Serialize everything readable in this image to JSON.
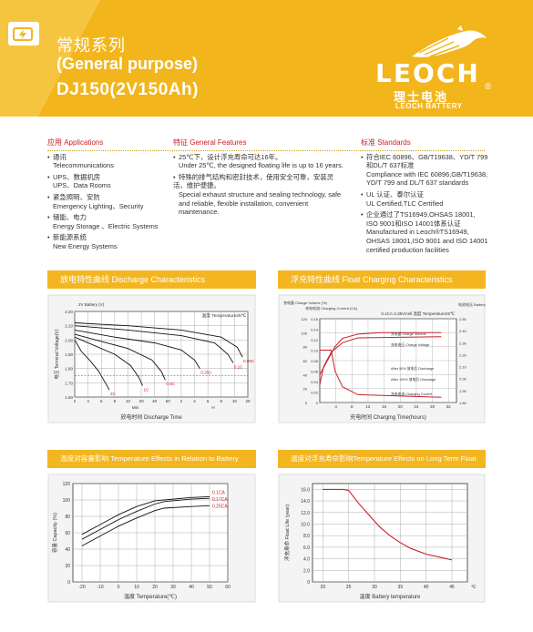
{
  "header": {
    "title_cn": "常规系列",
    "title_en": "(General purpose)",
    "model": "DJ150(2V150Ah)",
    "logo_word": "LEOCH",
    "logo_cn": "理士电池",
    "logo_sub": "LEOCH BATTERY",
    "logo_reg": "®",
    "brand_color": "#f2b51c",
    "accent_color": "#c8202a"
  },
  "applications": {
    "heading": "应用 Applications",
    "items": [
      {
        "cn": "通讯",
        "en": "Telecommunications"
      },
      {
        "cn": "UPS、数据机房",
        "en": "UPS、Data Rooms"
      },
      {
        "cn": "紧急照明、安防",
        "en": "Emergency Lighting、Security"
      },
      {
        "cn": "储能、电力",
        "en": "Energy Storage 、Electric Systems"
      },
      {
        "cn": "新能源系统",
        "en": "New Energy Systems"
      }
    ]
  },
  "features": {
    "heading": "特征 General Features",
    "items": [
      {
        "cn": "25℃下，设计浮充寿命可达16年。",
        "en": "Under 25℃, the designed floating life is up to 16 years."
      },
      {
        "cn": "特殊的排气结构和密封技术，使用安全可靠，安装灵活，维护便捷。",
        "en": "Special exhaust structure and sealing technology, safe and reliable, flexible installation, convenient maintenance."
      }
    ]
  },
  "standards": {
    "heading": "标准 Standards",
    "items": [
      {
        "lines": [
          "符合IEC 60896、GB/T19638、YD/T 799",
          "和DL/T 637标准",
          "Compliance with IEC 60896,GB/T19638,",
          "YD/T 799 and DL/T 637 standards"
        ]
      },
      {
        "lines": [
          "UL 认证、泰尔认证",
          "UL Certified,TLC Certified"
        ]
      },
      {
        "lines": [
          "企业通过了TS16949,OHSAS 18001,",
          "ISO 9001和ISO 14001体系认证",
          "Manufactured in Leoch®TS16949,",
          "OHSAS 18001,ISO 9001 and ISO 14001",
          "certified production facilities"
        ]
      }
    ]
  },
  "panels": {
    "discharge": "放电特性曲线 Discharge Characteristics",
    "float": "浮充特性曲线 Float Charging Characteristics",
    "temperature": "温度对容量影响 Temperature Effects in Relation to Battery Capacity",
    "life": "温度对浮充寿命影响Temperature Effects on Long Term Float Life"
  },
  "chart_data": [
    {
      "type": "line",
      "title": "温度 Temperature25℃",
      "xlabel": "放电时间 Discharge Time",
      "ylabel": "电压 Terminal Voltage(V)",
      "y_unit_label": "2V Battery (V)",
      "ylim": [
        1.6,
        2.2
      ],
      "yticks": [
        "2.20",
        "2.10",
        "2.00",
        "1.90",
        "1.80",
        "1.70",
        "1.60"
      ],
      "xticks": [
        "2",
        "4",
        "6",
        "8",
        "10",
        "20",
        "40",
        "60",
        "2",
        "4",
        "6",
        "8",
        "10",
        "20"
      ],
      "x_unit_labels": [
        "Min",
        "H"
      ],
      "series": [
        {
          "name": "2C",
          "points": [
            [
              0,
              2.0
            ],
            [
              0.5,
              1.92
            ],
            [
              1.2,
              1.85
            ],
            [
              1.8,
              1.78
            ],
            [
              2.3,
              1.7
            ],
            [
              2.6,
              1.65
            ]
          ]
        },
        {
          "name": "1C",
          "points": [
            [
              0,
              2.02
            ],
            [
              1.5,
              1.96
            ],
            [
              3,
              1.9
            ],
            [
              4.2,
              1.82
            ],
            [
              4.8,
              1.74
            ],
            [
              5.1,
              1.68
            ]
          ]
        },
        {
          "name": "0.6C",
          "points": [
            [
              0,
              2.04
            ],
            [
              2,
              1.99
            ],
            [
              4,
              1.94
            ],
            [
              5.8,
              1.86
            ],
            [
              6.5,
              1.78
            ],
            [
              6.8,
              1.72
            ]
          ]
        },
        {
          "name": "0.25C",
          "points": [
            [
              0,
              2.07
            ],
            [
              3,
              2.02
            ],
            [
              6,
              1.98
            ],
            [
              8,
              1.93
            ],
            [
              9,
              1.86
            ],
            [
              9.4,
              1.8
            ]
          ]
        },
        {
          "name": "0.1C",
          "points": [
            [
              0,
              2.1
            ],
            [
              4,
              2.07
            ],
            [
              8,
              2.03
            ],
            [
              10.5,
              1.98
            ],
            [
              11.5,
              1.9
            ],
            [
              11.9,
              1.84
            ]
          ]
        },
        {
          "name": "0.05C",
          "points": [
            [
              0,
              2.12
            ],
            [
              4,
              2.1
            ],
            [
              8,
              2.07
            ],
            [
              11,
              2.02
            ],
            [
              12.2,
              1.95
            ],
            [
              12.6,
              1.88
            ]
          ]
        }
      ],
      "annotations": [
        "2C",
        "1C",
        "0.6C",
        "0.25C",
        "0.1C",
        "0.05C"
      ]
    },
    {
      "type": "line",
      "title": "0.1CA-2.35V/cell 温度 Temperature25℃",
      "xlabel": "充电时间 Charging Time(hours)",
      "ylabel_left": [
        "充电量 Charge Volume (%)",
        "充电电流 Charging Current (CA)"
      ],
      "ylabel_right": "电池电压 Battery Voltage (V/Cell)",
      "xticks": [
        "4",
        "8",
        "12",
        "16",
        "20",
        "24",
        "28",
        "32"
      ],
      "yticks_volume": [
        "120",
        "100",
        "80",
        "60",
        "40",
        "20",
        "0"
      ],
      "yticks_current": [
        "0.16",
        "0.14",
        "0.12",
        "0.10",
        "0.08",
        "0.06",
        "0.04",
        "0.02",
        "0"
      ],
      "yticks_voltage": [
        "2.50",
        "2.40",
        "2.30",
        "2.20",
        "2.10",
        "2.00",
        "1.90",
        "1.80"
      ],
      "series": [
        {
          "name": "Charge Volume",
          "points": [
            [
              0,
              40
            ],
            [
              2,
              60
            ],
            [
              4,
              80
            ],
            [
              6,
              92
            ],
            [
              10,
              98
            ],
            [
              16,
              100
            ],
            [
              32,
              100
            ]
          ]
        },
        {
          "name": "Charge Voltage",
          "points": [
            [
              0,
              1.95
            ],
            [
              1,
              2.1
            ],
            [
              3,
              2.22
            ],
            [
              6,
              2.3
            ],
            [
              10,
              2.34
            ],
            [
              32,
              2.35
            ]
          ]
        },
        {
          "name": "Charge Current",
          "points": [
            [
              0,
              0.1
            ],
            [
              3,
              0.1
            ],
            [
              4,
              0.06
            ],
            [
              6,
              0.03
            ],
            [
              10,
              0.015
            ],
            [
              32,
              0.01
            ]
          ]
        }
      ],
      "legend": [
        "充电量 Charge Volume",
        "充电电压 Charge Voltage",
        "After 50% 放电后 Discharge",
        "After 100% 放电后 Discharge",
        "充电电流 Charging Current"
      ]
    },
    {
      "type": "line",
      "xlabel": "温度 Temperature(℃)",
      "ylabel": "容量 Capacity (%)",
      "xticks": [
        "-20",
        "-10",
        "0",
        "10",
        "20",
        "30",
        "40",
        "50",
        "60"
      ],
      "yticks": [
        "120",
        "100",
        "80",
        "60",
        "40",
        "20",
        "0"
      ],
      "xlim": [
        -25,
        60
      ],
      "ylim": [
        0,
        120
      ],
      "series": [
        {
          "name": "0.1CA",
          "points": [
            [
              -20,
              58
            ],
            [
              -10,
              70
            ],
            [
              0,
              82
            ],
            [
              10,
              92
            ],
            [
              20,
              99
            ],
            [
              25,
              100
            ],
            [
              40,
              103
            ],
            [
              50,
              104
            ]
          ]
        },
        {
          "name": "0.17CA",
          "points": [
            [
              -20,
              52
            ],
            [
              -10,
              64
            ],
            [
              0,
              76
            ],
            [
              10,
              86
            ],
            [
              20,
              95
            ],
            [
              25,
              98
            ],
            [
              40,
              101
            ],
            [
              50,
              102
            ]
          ]
        },
        {
          "name": "0.25CA",
          "points": [
            [
              -20,
              44
            ],
            [
              -10,
              56
            ],
            [
              0,
              68
            ],
            [
              10,
              78
            ],
            [
              20,
              87
            ],
            [
              25,
              90
            ],
            [
              40,
              92
            ],
            [
              50,
              93
            ]
          ]
        }
      ]
    },
    {
      "type": "line",
      "xlabel": "温度 Battery temperature",
      "ylabel": "浮充寿命 Float Life (year)",
      "xticks": [
        "20",
        "25",
        "30",
        "35",
        "40",
        "45"
      ],
      "yticks": [
        "16.0",
        "14.0",
        "12.0",
        "10.0",
        "8.0",
        "6.0",
        "4.0",
        "2.0",
        "0"
      ],
      "x_unit": "℃",
      "xlim": [
        18,
        48
      ],
      "ylim": [
        0,
        17
      ],
      "series": [
        {
          "name": "Float Life",
          "points": [
            [
              20,
              16
            ],
            [
              24,
              16
            ],
            [
              25,
              15.8
            ],
            [
              27,
              13.5
            ],
            [
              29,
              11.5
            ],
            [
              31,
              9.5
            ],
            [
              33,
              8
            ],
            [
              35,
              6.8
            ],
            [
              37,
              5.8
            ],
            [
              40,
              4.8
            ],
            [
              43,
              4.2
            ],
            [
              45,
              3.8
            ]
          ]
        }
      ]
    }
  ]
}
